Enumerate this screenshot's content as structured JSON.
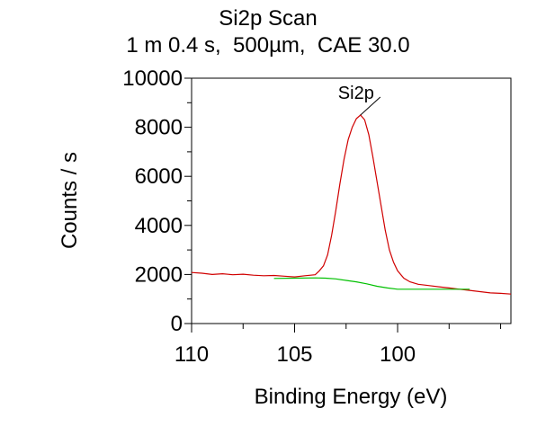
{
  "chart_data": {
    "type": "line",
    "title": "Si2p Scan",
    "subtitle": "1 m 0.4 s,  500µm,  CAE 30.0",
    "xlabel": "Binding Energy (eV)",
    "ylabel": "Counts / s",
    "xlim": [
      110,
      94.5
    ],
    "ylim": [
      0,
      10000
    ],
    "x_reversed": true,
    "x_ticks": [
      110,
      105,
      100
    ],
    "y_ticks": [
      0,
      2000,
      4000,
      6000,
      8000,
      10000
    ],
    "grid": false,
    "series": [
      {
        "color": "#d00000",
        "points": [
          [
            110,
            2080
          ],
          [
            109.5,
            2050
          ],
          [
            109,
            2000
          ],
          [
            108.5,
            2030
          ],
          [
            108,
            1990
          ],
          [
            107.5,
            2010
          ],
          [
            107,
            1970
          ],
          [
            106.5,
            1950
          ],
          [
            106,
            1960
          ],
          [
            105.5,
            1930
          ],
          [
            105,
            1900
          ],
          [
            104.5,
            1950
          ],
          [
            104,
            1990
          ],
          [
            103.8,
            2150
          ],
          [
            103.6,
            2350
          ],
          [
            103.4,
            2800
          ],
          [
            103.2,
            3600
          ],
          [
            103,
            4600
          ],
          [
            102.8,
            5700
          ],
          [
            102.6,
            6700
          ],
          [
            102.4,
            7500
          ],
          [
            102.2,
            8000
          ],
          [
            102,
            8350
          ],
          [
            101.8,
            8500
          ],
          [
            101.6,
            8300
          ],
          [
            101.4,
            7700
          ],
          [
            101.2,
            6800
          ],
          [
            101,
            5800
          ],
          [
            100.8,
            4800
          ],
          [
            100.6,
            3800
          ],
          [
            100.4,
            3000
          ],
          [
            100.2,
            2500
          ],
          [
            100,
            2150
          ],
          [
            99.7,
            1850
          ],
          [
            99.4,
            1700
          ],
          [
            99,
            1600
          ],
          [
            98.5,
            1550
          ],
          [
            98,
            1500
          ],
          [
            97.5,
            1450
          ],
          [
            97,
            1400
          ],
          [
            96.5,
            1350
          ],
          [
            96,
            1300
          ],
          [
            95.5,
            1250
          ],
          [
            95,
            1230
          ],
          [
            94.5,
            1200
          ]
        ]
      },
      {
        "color": "#00c000",
        "points": [
          [
            106,
            1840
          ],
          [
            105,
            1850
          ],
          [
            104,
            1860
          ],
          [
            103.5,
            1850
          ],
          [
            103,
            1820
          ],
          [
            102.5,
            1760
          ],
          [
            102,
            1700
          ],
          [
            101.5,
            1620
          ],
          [
            101,
            1520
          ],
          [
            100.5,
            1450
          ],
          [
            100,
            1400
          ],
          [
            99.5,
            1400
          ],
          [
            99,
            1400
          ],
          [
            98.5,
            1400
          ],
          [
            98,
            1400
          ],
          [
            97.5,
            1400
          ],
          [
            97,
            1400
          ],
          [
            96.5,
            1400
          ]
        ]
      }
    ],
    "annotations": [
      {
        "text": "Si2p",
        "x": 101.8,
        "y": 8500
      }
    ]
  }
}
